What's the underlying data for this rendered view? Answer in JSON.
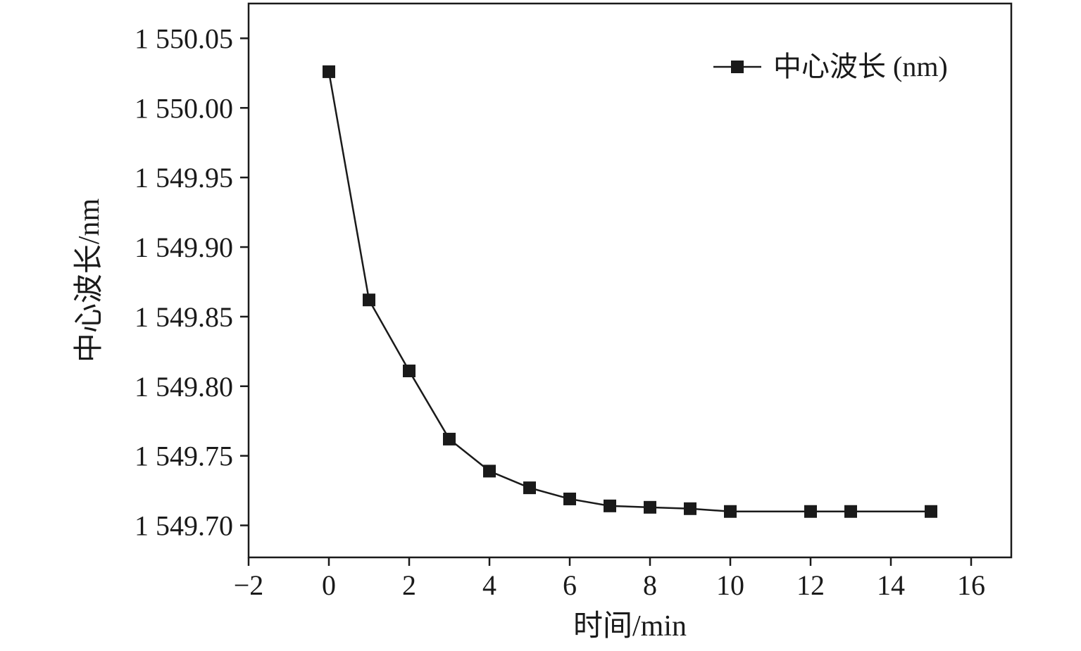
{
  "chart_data": {
    "type": "line",
    "xlabel": "时间/min",
    "ylabel": "中心波长/nm",
    "xlim": [
      -2,
      17
    ],
    "ylim": [
      1549.677,
      1550.075
    ],
    "x_ticks": [
      -2,
      0,
      2,
      4,
      6,
      8,
      10,
      12,
      14,
      16
    ],
    "x_tick_labels": [
      "−2",
      "0",
      "2",
      "4",
      "6",
      "8",
      "10",
      "12",
      "14",
      "16"
    ],
    "y_ticks": [
      1549.7,
      1549.75,
      1549.8,
      1549.85,
      1549.9,
      1549.95,
      1550.0,
      1550.05
    ],
    "y_tick_labels": [
      "1 549.70",
      "1 549.75",
      "1 549.80",
      "1 549.85",
      "1 549.90",
      "1 549.95",
      "1 550.00",
      "1 550.05"
    ],
    "grid": false,
    "legend_position": "top-right",
    "series": [
      {
        "name": "中心波长 (nm)",
        "marker": "square",
        "color": "#1a1a1a",
        "x": [
          0,
          1,
          2,
          3,
          4,
          5,
          6,
          7,
          8,
          9,
          10,
          12,
          13,
          15
        ],
        "y": [
          1550.026,
          1549.862,
          1549.811,
          1549.762,
          1549.739,
          1549.727,
          1549.719,
          1549.714,
          1549.713,
          1549.712,
          1549.71,
          1549.71,
          1549.71,
          1549.71
        ]
      }
    ]
  }
}
